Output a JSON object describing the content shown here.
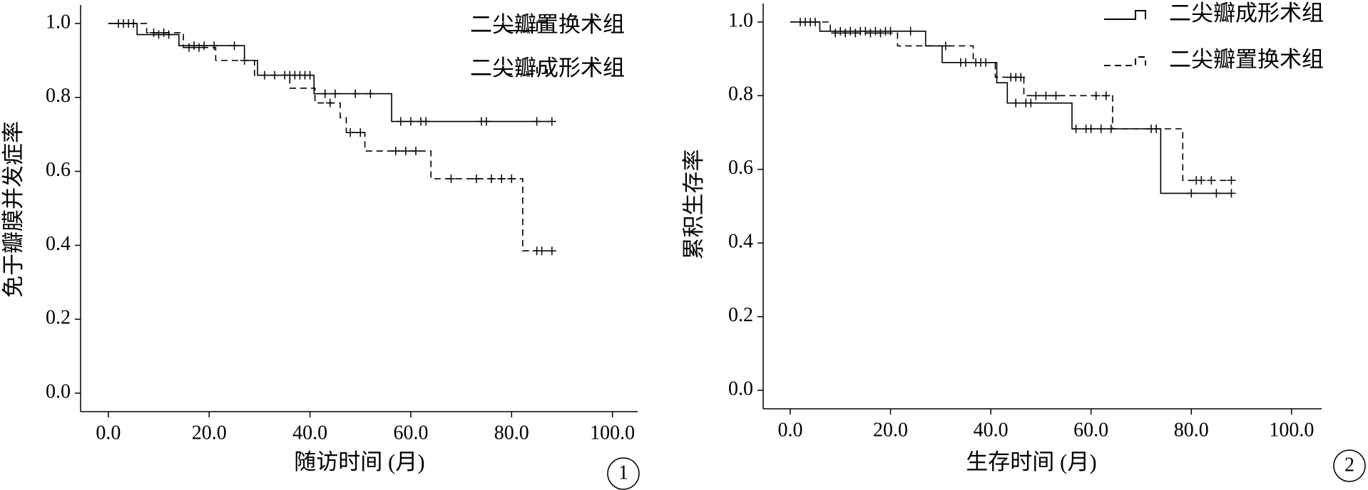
{
  "chart_data": [
    {
      "type": "step",
      "xlabel": "随访时间 (月)",
      "ylabel": "免于瓣膜并发症率",
      "panel_label": "1",
      "xlim": [
        -5.5,
        105
      ],
      "ylim": [
        -0.05,
        1.05
      ],
      "xticks": [
        {
          "value": 0,
          "label": "0.0"
        },
        {
          "value": 20,
          "label": "20.0"
        },
        {
          "value": 40,
          "label": "40.0"
        },
        {
          "value": 60,
          "label": "60.0"
        },
        {
          "value": 80,
          "label": "80.0"
        },
        {
          "value": 100,
          "label": "100.0"
        }
      ],
      "yticks": [
        {
          "value": 0,
          "label": "0.0"
        },
        {
          "value": 0.2,
          "label": "0.2"
        },
        {
          "value": 0.4,
          "label": "0.4"
        },
        {
          "value": 0.6,
          "label": "0.6"
        },
        {
          "value": 0.8,
          "label": "0.8"
        },
        {
          "value": 1,
          "label": "1.0"
        }
      ],
      "series": [
        {
          "name": "二尖瓣置换术组",
          "color": "#000000",
          "dash": false,
          "x": [
            0,
            5.7,
            14,
            27,
            29.6,
            40.8,
            56.2,
            88
          ],
          "values": [
            1,
            0.97,
            0.94,
            0.9,
            0.86,
            0.81,
            0.735,
            0.735
          ],
          "censored": [
            2,
            3,
            4,
            5,
            10,
            12,
            17,
            19,
            21,
            25,
            31,
            33,
            35,
            36,
            37,
            38,
            39,
            40,
            43,
            45,
            49,
            52,
            58,
            60,
            62,
            63,
            74,
            75,
            85,
            88
          ]
        },
        {
          "name": "二尖瓣成形术组",
          "color": "#000000",
          "dash": true,
          "x": [
            0,
            7.6,
            14.9,
            21.3,
            29,
            36,
            41,
            46,
            47.2,
            50.9,
            64,
            82.2,
            88
          ],
          "values": [
            1,
            0.975,
            0.935,
            0.9,
            0.86,
            0.825,
            0.785,
            0.745,
            0.705,
            0.655,
            0.58,
            0.385,
            0.385
          ],
          "censored": [
            9,
            11,
            16,
            18,
            27,
            44,
            48,
            50,
            57,
            59,
            61,
            68,
            73,
            76,
            78,
            80,
            85,
            86,
            88
          ]
        }
      ]
    },
    {
      "type": "step",
      "xlabel": "生存时间 (月)",
      "ylabel": "累积生存率",
      "panel_label": "2",
      "xlim": [
        -5.4,
        106
      ],
      "ylim": [
        -0.05,
        1.05
      ],
      "xticks": [
        {
          "value": 0,
          "label": "0.0"
        },
        {
          "value": 20,
          "label": "20.0"
        },
        {
          "value": 40,
          "label": "40.0"
        },
        {
          "value": 60,
          "label": "60.0"
        },
        {
          "value": 80,
          "label": "80.0"
        },
        {
          "value": 100,
          "label": "100.0"
        }
      ],
      "yticks": [
        {
          "value": 0,
          "label": "0.0"
        },
        {
          "value": 0.2,
          "label": "0.2"
        },
        {
          "value": 0.4,
          "label": "0.4"
        },
        {
          "value": 0.6,
          "label": "0.6"
        },
        {
          "value": 0.8,
          "label": "0.8"
        },
        {
          "value": 1,
          "label": "1.0"
        }
      ],
      "series": [
        {
          "name": "二尖瓣成形术组",
          "color": "#000000",
          "dash": false,
          "x": [
            0,
            5.9,
            27,
            30.3,
            41.2,
            43.3,
            56.2,
            73.9,
            88
          ],
          "values": [
            1,
            0.975,
            0.935,
            0.89,
            0.835,
            0.78,
            0.71,
            0.535,
            0.535
          ],
          "censored": [
            2,
            3,
            4,
            5,
            10,
            12,
            14,
            15,
            17,
            19,
            20,
            24,
            34,
            35,
            37,
            38,
            39,
            45,
            47,
            48,
            57,
            59,
            60,
            62,
            64,
            72,
            73,
            80,
            85,
            88
          ]
        },
        {
          "name": "二尖瓣置换术组",
          "color": "#000000",
          "dash": true,
          "x": [
            0,
            8,
            21.4,
            36.5,
            40.9,
            46.6,
            64.3,
            78.3,
            88
          ],
          "values": [
            1,
            0.97,
            0.935,
            0.89,
            0.85,
            0.8,
            0.71,
            0.57,
            0.57
          ],
          "censored": [
            9,
            11,
            13,
            16,
            18,
            31,
            44,
            45,
            46,
            49,
            51,
            53,
            61,
            63,
            81,
            82,
            84,
            88
          ]
        }
      ]
    }
  ]
}
